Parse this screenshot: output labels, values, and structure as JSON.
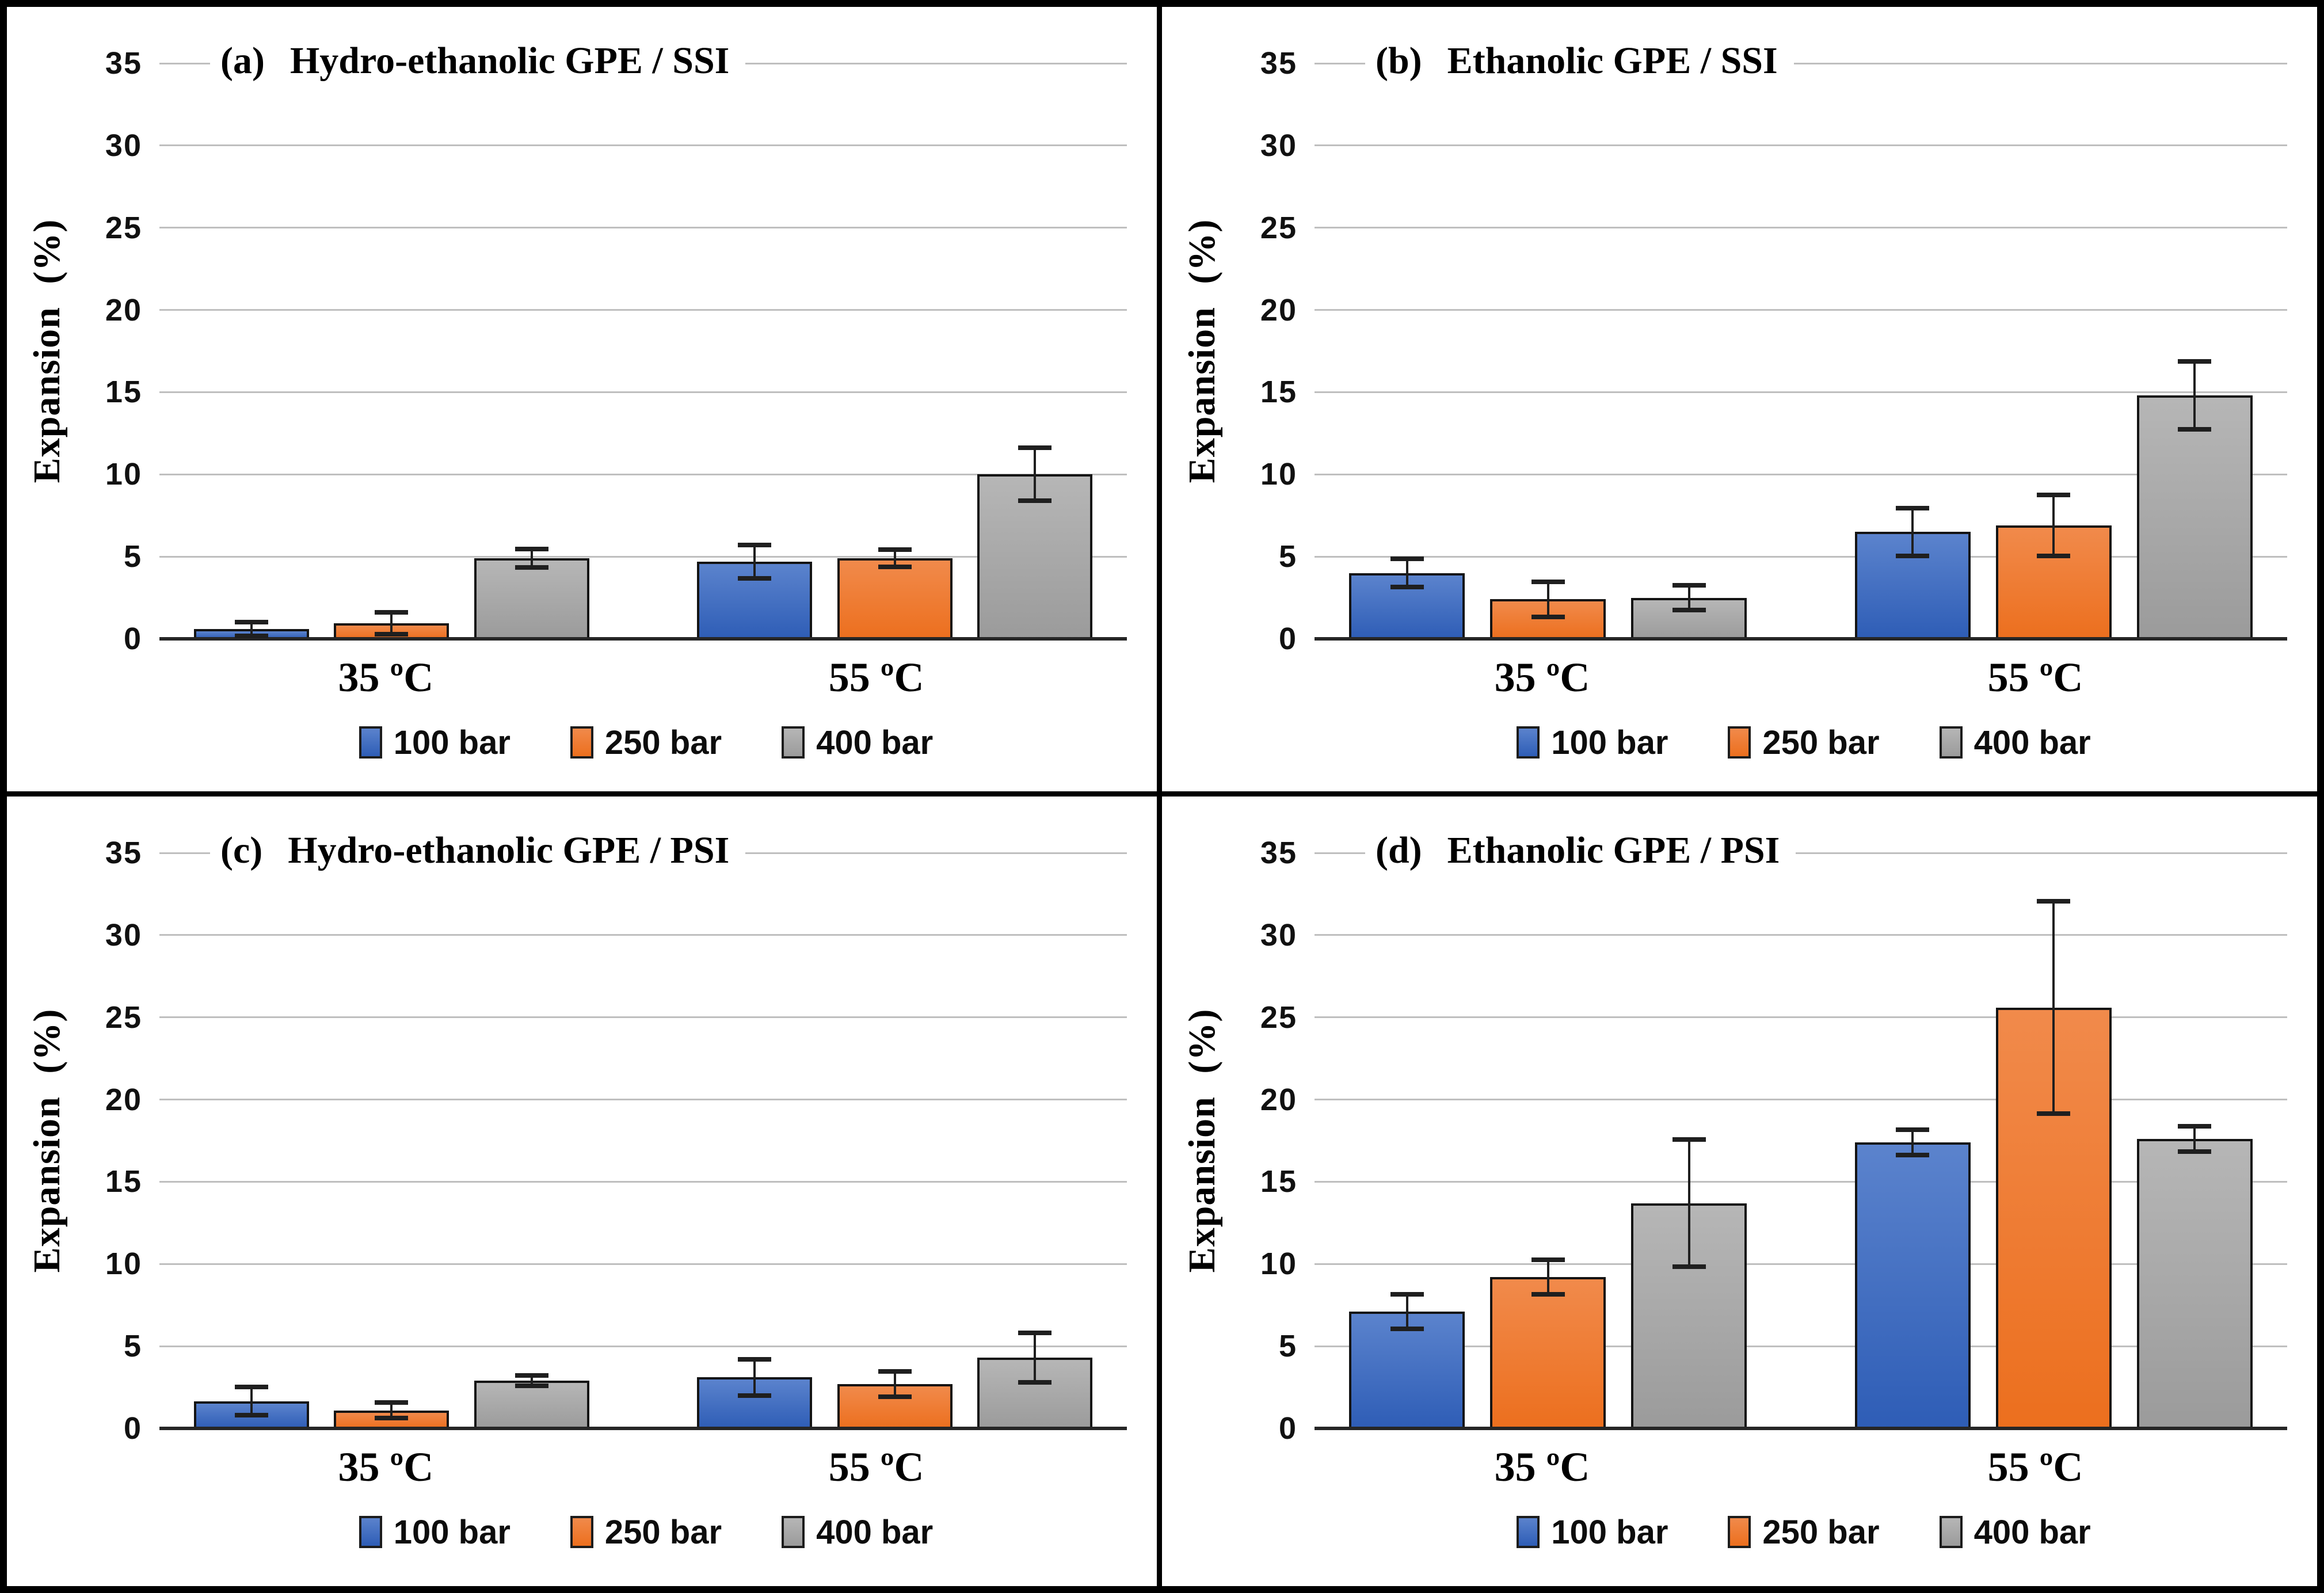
{
  "figure": {
    "ylabel": "Expansion (%)",
    "colors": {
      "blue": {
        "top": "#5b83cd",
        "bottom": "#2e5db6"
      },
      "orange": {
        "top": "#f18a4b",
        "bottom": "#ec6f1e"
      },
      "gray": {
        "top": "#b6b6b6",
        "bottom": "#9b9b9b"
      },
      "gridline": "#bfbfbf",
      "axis_line": "#262626",
      "error_bar": "#1f1f1f",
      "frame": "#000000"
    }
  },
  "chart_data": [
    {
      "type": "bar",
      "panel_label": "(a)",
      "title": "Hydro-ethanolic GPE / SSI",
      "ylabel": "Expansion (%)",
      "ylim": [
        0,
        35
      ],
      "yticks": [
        0,
        5,
        10,
        15,
        20,
        25,
        30,
        35
      ],
      "grid": "horizontal",
      "legend_position": "bottom",
      "categories": [
        "35 ºC",
        "55 ºC"
      ],
      "series": [
        {
          "name": "100 bar",
          "color": "blue",
          "values": [
            0.6,
            4.7
          ],
          "errors": [
            0.55,
            1.15
          ]
        },
        {
          "name": "250 bar",
          "color": "orange",
          "values": [
            0.95,
            4.9
          ],
          "errors": [
            0.8,
            0.65
          ]
        },
        {
          "name": "400 bar",
          "color": "gray",
          "values": [
            4.9,
            10.0
          ],
          "errors": [
            0.7,
            1.75
          ]
        }
      ]
    },
    {
      "type": "bar",
      "panel_label": "(b)",
      "title": "Ethanolic GPE / SSI",
      "ylabel": "Expansion (%)",
      "ylim": [
        0,
        35
      ],
      "yticks": [
        0,
        5,
        10,
        15,
        20,
        25,
        30,
        35
      ],
      "grid": "horizontal",
      "legend_position": "bottom",
      "categories": [
        "35 ºC",
        "55 ºC"
      ],
      "series": [
        {
          "name": "100 bar",
          "color": "blue",
          "values": [
            4.0,
            6.5
          ],
          "errors": [
            1.0,
            1.6
          ]
        },
        {
          "name": "250 bar",
          "color": "orange",
          "values": [
            2.4,
            6.9
          ],
          "errors": [
            1.2,
            2.0
          ]
        },
        {
          "name": "400 bar",
          "color": "gray",
          "values": [
            2.5,
            14.8
          ],
          "errors": [
            0.9,
            2.2
          ]
        }
      ]
    },
    {
      "type": "bar",
      "panel_label": "(c)",
      "title": "Hydro-ethanolic GPE / PSI",
      "ylabel": "Expansion (%)",
      "ylim": [
        0,
        35
      ],
      "yticks": [
        0,
        5,
        10,
        15,
        20,
        25,
        30,
        35
      ],
      "grid": "horizontal",
      "legend_position": "bottom",
      "categories": [
        "35 ºC",
        "55 ºC"
      ],
      "series": [
        {
          "name": "100 bar",
          "color": "blue",
          "values": [
            1.65,
            3.1
          ],
          "errors": [
            1.0,
            1.25
          ]
        },
        {
          "name": "250 bar",
          "color": "orange",
          "values": [
            1.1,
            2.7
          ],
          "errors": [
            0.6,
            0.9
          ]
        },
        {
          "name": "400 bar",
          "color": "gray",
          "values": [
            2.9,
            4.3
          ],
          "errors": [
            0.45,
            1.65
          ]
        }
      ]
    },
    {
      "type": "bar",
      "panel_label": "(d)",
      "title": "Ethanolic GPE / PSI",
      "ylabel": "Expansion (%)",
      "ylim": [
        0,
        35
      ],
      "yticks": [
        0,
        5,
        10,
        15,
        20,
        25,
        30,
        35
      ],
      "grid": "horizontal",
      "legend_position": "bottom",
      "categories": [
        "35 ºC",
        "55 ºC"
      ],
      "series": [
        {
          "name": "100 bar",
          "color": "blue",
          "values": [
            7.1,
            17.4
          ],
          "errors": [
            1.2,
            0.9
          ]
        },
        {
          "name": "250 bar",
          "color": "orange",
          "values": [
            9.2,
            25.6
          ],
          "errors": [
            1.2,
            6.6
          ]
        },
        {
          "name": "400 bar",
          "color": "gray",
          "values": [
            13.7,
            17.6
          ],
          "errors": [
            4.0,
            0.9
          ]
        }
      ]
    }
  ]
}
